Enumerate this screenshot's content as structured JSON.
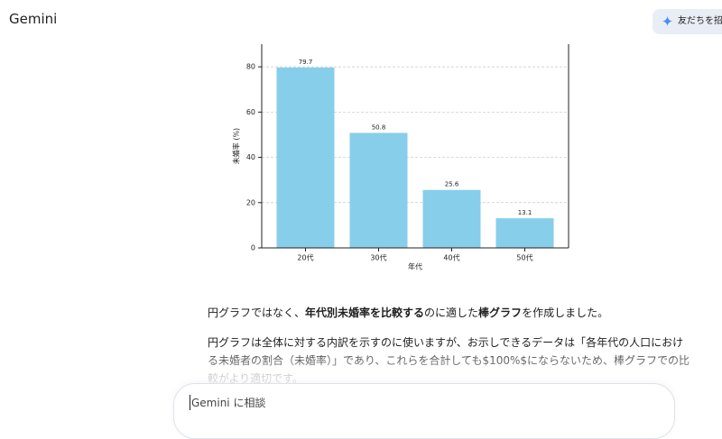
{
  "header": {
    "title": "Gemini",
    "invite_button": "友だちを招"
  },
  "chart_data": {
    "type": "bar",
    "xlabel": "年代",
    "ylabel": "未婚率 (%)",
    "categories": [
      "20代",
      "30代",
      "40代",
      "50代"
    ],
    "values": [
      79.7,
      50.8,
      25.6,
      13.1
    ],
    "color": "#87ceeb",
    "ylim": [
      0,
      90
    ],
    "yticks": [
      0,
      20,
      40,
      60,
      80
    ],
    "grid": true
  },
  "paragraphs": [
    {
      "segments": [
        {
          "text": "円グラフではなく、",
          "bold": false
        },
        {
          "text": "年代別未婚率を比較する",
          "bold": true
        },
        {
          "text": "のに適した",
          "bold": false
        },
        {
          "text": "棒グラフ",
          "bold": true
        },
        {
          "text": "を作成しました。",
          "bold": false
        }
      ]
    },
    {
      "lines": [
        "円グラフは全体に対する内訳を示すのに使いますが、お示しできるデータは「各年代の人口におけ",
        "る未婚者の割合（未婚率）」であり、これらを合計しても$100%$にならないため、棒グラフでの比",
        "較がより適切です。"
      ]
    }
  ],
  "input": {
    "placeholder": "Gemini に相談"
  }
}
